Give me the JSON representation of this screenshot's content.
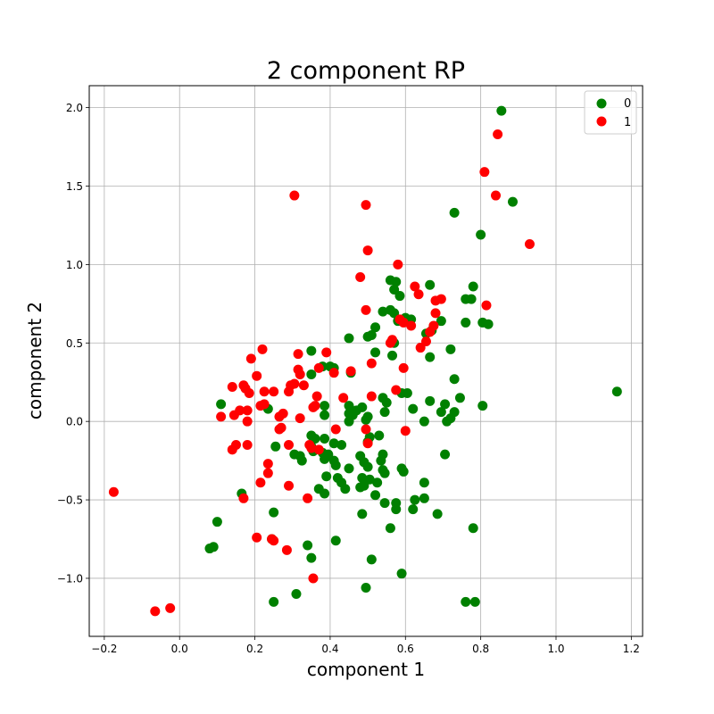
{
  "chart_data": {
    "type": "scatter",
    "title": "2 component RP",
    "xlabel": "component 1",
    "ylabel": "component 2",
    "xlim": [
      -0.24,
      1.23
    ],
    "ylim": [
      -1.37,
      2.14
    ],
    "xticks": [
      -0.2,
      0.0,
      0.2,
      0.4,
      0.6,
      0.8,
      1.0,
      1.2
    ],
    "xtick_labels": [
      "−0.2",
      "0.0",
      "0.2",
      "0.4",
      "0.6",
      "0.8",
      "1.0",
      "1.2"
    ],
    "yticks": [
      -1.0,
      -0.5,
      0.0,
      0.5,
      1.0,
      1.5,
      2.0
    ],
    "ytick_labels": [
      "−1.0",
      "−0.5",
      "0.0",
      "0.5",
      "1.0",
      "1.5",
      "2.0"
    ],
    "grid": true,
    "legend_position": "top-right",
    "series": [
      {
        "name": "0",
        "color": "#008000",
        "points": [
          [
            0.855,
            1.98
          ],
          [
            0.885,
            1.4
          ],
          [
            0.73,
            1.33
          ],
          [
            0.8,
            1.19
          ],
          [
            1.162,
            0.19
          ],
          [
            0.56,
            0.9
          ],
          [
            0.575,
            0.89
          ],
          [
            0.665,
            0.87
          ],
          [
            0.78,
            0.86
          ],
          [
            0.57,
            0.84
          ],
          [
            0.585,
            0.8
          ],
          [
            0.76,
            0.78
          ],
          [
            0.775,
            0.78
          ],
          [
            0.54,
            0.7
          ],
          [
            0.56,
            0.71
          ],
          [
            0.57,
            0.69
          ],
          [
            0.6,
            0.66
          ],
          [
            0.615,
            0.65
          ],
          [
            0.58,
            0.64
          ],
          [
            0.695,
            0.64
          ],
          [
            0.76,
            0.63
          ],
          [
            0.805,
            0.63
          ],
          [
            0.82,
            0.62
          ],
          [
            0.52,
            0.6
          ],
          [
            0.67,
            0.58
          ],
          [
            0.655,
            0.56
          ],
          [
            0.5,
            0.54
          ],
          [
            0.51,
            0.55
          ],
          [
            0.45,
            0.53
          ],
          [
            0.57,
            0.5
          ],
          [
            0.72,
            0.46
          ],
          [
            0.35,
            0.45
          ],
          [
            0.52,
            0.44
          ],
          [
            0.565,
            0.42
          ],
          [
            0.665,
            0.41
          ],
          [
            0.38,
            0.35
          ],
          [
            0.4,
            0.35
          ],
          [
            0.41,
            0.34
          ],
          [
            0.455,
            0.31
          ],
          [
            0.35,
            0.3
          ],
          [
            0.73,
            0.27
          ],
          [
            0.59,
            0.18
          ],
          [
            0.605,
            0.18
          ],
          [
            0.54,
            0.15
          ],
          [
            0.665,
            0.13
          ],
          [
            0.745,
            0.15
          ],
          [
            0.55,
            0.12
          ],
          [
            0.705,
            0.11
          ],
          [
            0.11,
            0.11
          ],
          [
            0.805,
            0.1
          ],
          [
            0.385,
            0.1
          ],
          [
            0.45,
            0.1
          ],
          [
            0.485,
            0.09
          ],
          [
            0.235,
            0.08
          ],
          [
            0.62,
            0.08
          ],
          [
            0.47,
            0.07
          ],
          [
            0.545,
            0.06
          ],
          [
            0.695,
            0.06
          ],
          [
            0.73,
            0.06
          ],
          [
            0.45,
            0.05
          ],
          [
            0.385,
            0.04
          ],
          [
            0.46,
            0.04
          ],
          [
            0.5,
            0.03
          ],
          [
            0.72,
            0.02
          ],
          [
            0.45,
            0.0
          ],
          [
            0.495,
            0.01
          ],
          [
            0.65,
            0.0
          ],
          [
            0.71,
            0.0
          ],
          [
            0.53,
            -0.09
          ],
          [
            0.35,
            -0.09
          ],
          [
            0.36,
            -0.11
          ],
          [
            0.385,
            -0.11
          ],
          [
            0.505,
            -0.1
          ],
          [
            0.5,
            -0.13
          ],
          [
            0.41,
            -0.14
          ],
          [
            0.43,
            -0.15
          ],
          [
            0.35,
            -0.16
          ],
          [
            0.255,
            -0.16
          ],
          [
            0.355,
            -0.19
          ],
          [
            0.38,
            -0.2
          ],
          [
            0.395,
            -0.21
          ],
          [
            0.305,
            -0.21
          ],
          [
            0.32,
            -0.22
          ],
          [
            0.385,
            -0.24
          ],
          [
            0.41,
            -0.25
          ],
          [
            0.48,
            -0.22
          ],
          [
            0.54,
            -0.21
          ],
          [
            0.705,
            -0.21
          ],
          [
            0.325,
            -0.25
          ],
          [
            0.415,
            -0.28
          ],
          [
            0.49,
            -0.26
          ],
          [
            0.5,
            -0.29
          ],
          [
            0.535,
            -0.25
          ],
          [
            0.45,
            -0.3
          ],
          [
            0.54,
            -0.31
          ],
          [
            0.59,
            -0.3
          ],
          [
            0.595,
            -0.32
          ],
          [
            0.545,
            -0.33
          ],
          [
            0.39,
            -0.35
          ],
          [
            0.42,
            -0.36
          ],
          [
            0.485,
            -0.36
          ],
          [
            0.505,
            -0.37
          ],
          [
            0.43,
            -0.39
          ],
          [
            0.525,
            -0.39
          ],
          [
            0.49,
            -0.41
          ],
          [
            0.44,
            -0.43
          ],
          [
            0.37,
            -0.43
          ],
          [
            0.48,
            -0.42
          ],
          [
            0.65,
            -0.39
          ],
          [
            0.385,
            -0.46
          ],
          [
            0.165,
            -0.46
          ],
          [
            0.52,
            -0.47
          ],
          [
            0.545,
            -0.52
          ],
          [
            0.575,
            -0.52
          ],
          [
            0.625,
            -0.5
          ],
          [
            0.65,
            -0.49
          ],
          [
            0.575,
            -0.56
          ],
          [
            0.62,
            -0.56
          ],
          [
            0.25,
            -0.58
          ],
          [
            0.485,
            -0.59
          ],
          [
            0.685,
            -0.59
          ],
          [
            0.1,
            -0.64
          ],
          [
            0.56,
            -0.68
          ],
          [
            0.78,
            -0.68
          ],
          [
            0.245,
            -0.75
          ],
          [
            0.415,
            -0.76
          ],
          [
            0.09,
            -0.8
          ],
          [
            0.08,
            -0.81
          ],
          [
            0.34,
            -0.79
          ],
          [
            0.35,
            -0.87
          ],
          [
            0.51,
            -0.88
          ],
          [
            0.59,
            -0.97
          ],
          [
            0.495,
            -1.06
          ],
          [
            0.31,
            -1.1
          ],
          [
            0.25,
            -1.15
          ],
          [
            0.76,
            -1.15
          ],
          [
            0.785,
            -1.15
          ]
        ]
      },
      {
        "name": "1",
        "color": "#ff0000",
        "points": [
          [
            0.845,
            1.83
          ],
          [
            0.81,
            1.59
          ],
          [
            0.84,
            1.44
          ],
          [
            0.305,
            1.44
          ],
          [
            0.495,
            1.38
          ],
          [
            0.93,
            1.13
          ],
          [
            0.5,
            1.09
          ],
          [
            0.58,
            1.0
          ],
          [
            0.48,
            0.92
          ],
          [
            0.625,
            0.86
          ],
          [
            0.635,
            0.81
          ],
          [
            0.695,
            0.78
          ],
          [
            0.68,
            0.77
          ],
          [
            0.815,
            0.74
          ],
          [
            0.495,
            0.71
          ],
          [
            0.68,
            0.69
          ],
          [
            0.585,
            0.65
          ],
          [
            0.595,
            0.63
          ],
          [
            0.615,
            0.61
          ],
          [
            0.675,
            0.61
          ],
          [
            0.665,
            0.57
          ],
          [
            0.565,
            0.52
          ],
          [
            0.56,
            0.5
          ],
          [
            0.655,
            0.51
          ],
          [
            0.64,
            0.47
          ],
          [
            0.22,
            0.46
          ],
          [
            0.315,
            0.43
          ],
          [
            0.39,
            0.44
          ],
          [
            0.19,
            0.4
          ],
          [
            0.37,
            0.34
          ],
          [
            0.51,
            0.37
          ],
          [
            0.595,
            0.34
          ],
          [
            0.315,
            0.33
          ],
          [
            0.455,
            0.32
          ],
          [
            0.41,
            0.31
          ],
          [
            0.205,
            0.29
          ],
          [
            0.32,
            0.3
          ],
          [
            0.295,
            0.23
          ],
          [
            0.305,
            0.24
          ],
          [
            0.33,
            0.23
          ],
          [
            0.14,
            0.22
          ],
          [
            0.17,
            0.23
          ],
          [
            0.175,
            0.21
          ],
          [
            0.185,
            0.18
          ],
          [
            0.225,
            0.19
          ],
          [
            0.25,
            0.19
          ],
          [
            0.29,
            0.19
          ],
          [
            0.575,
            0.2
          ],
          [
            0.365,
            0.16
          ],
          [
            0.435,
            0.15
          ],
          [
            0.51,
            0.16
          ],
          [
            0.215,
            0.1
          ],
          [
            0.225,
            0.11
          ],
          [
            0.36,
            0.1
          ],
          [
            0.355,
            0.09
          ],
          [
            0.16,
            0.07
          ],
          [
            0.18,
            0.07
          ],
          [
            0.275,
            0.05
          ],
          [
            0.265,
            0.03
          ],
          [
            0.145,
            0.04
          ],
          [
            0.11,
            0.03
          ],
          [
            0.18,
            0.0
          ],
          [
            0.32,
            0.02
          ],
          [
            0.27,
            -0.04
          ],
          [
            0.265,
            -0.05
          ],
          [
            0.415,
            -0.05
          ],
          [
            0.495,
            -0.05
          ],
          [
            0.6,
            -0.06
          ],
          [
            0.29,
            -0.15
          ],
          [
            0.345,
            -0.15
          ],
          [
            0.5,
            -0.14
          ],
          [
            0.15,
            -0.15
          ],
          [
            0.18,
            -0.15
          ],
          [
            0.14,
            -0.18
          ],
          [
            0.35,
            -0.17
          ],
          [
            0.37,
            -0.18
          ],
          [
            0.235,
            -0.27
          ],
          [
            0.235,
            -0.33
          ],
          [
            0.215,
            -0.39
          ],
          [
            0.29,
            -0.41
          ],
          [
            0.34,
            -0.49
          ],
          [
            0.17,
            -0.49
          ],
          [
            -0.175,
            -0.45
          ],
          [
            0.205,
            -0.74
          ],
          [
            0.245,
            -0.75
          ],
          [
            0.25,
            -0.76
          ],
          [
            0.285,
            -0.82
          ],
          [
            0.355,
            -1.0
          ],
          [
            -0.065,
            -1.21
          ],
          [
            -0.025,
            -1.19
          ]
        ]
      }
    ]
  }
}
